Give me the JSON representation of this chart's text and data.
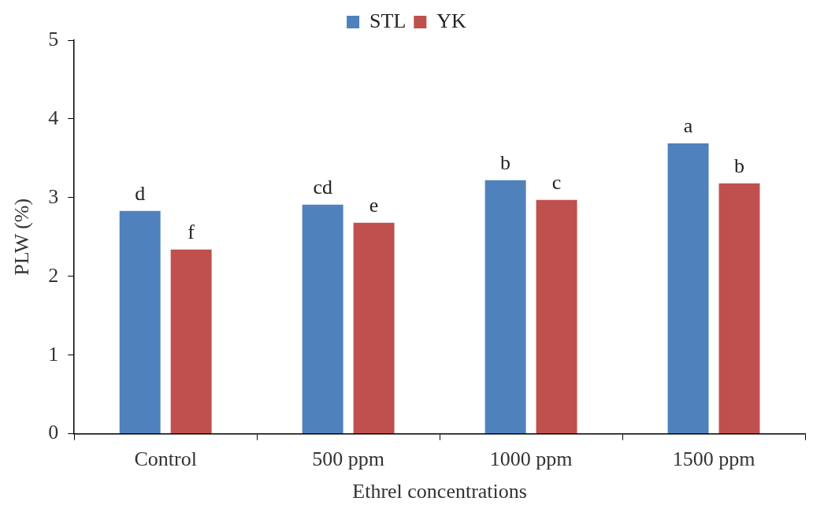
{
  "chart_data": {
    "type": "bar",
    "xlabel": "Ethrel concentrations",
    "ylabel": "PLW (%)",
    "categories": [
      "Control",
      "500 ppm",
      "1000 ppm",
      "1500 ppm"
    ],
    "series": [
      {
        "name": "STL",
        "color": "#4f81bd",
        "values": [
          2.83,
          2.91,
          3.22,
          3.69
        ],
        "value_labels": [
          "d",
          "cd",
          "b",
          "a"
        ]
      },
      {
        "name": "YK",
        "color": "#c0504d",
        "values": [
          2.34,
          2.68,
          2.97,
          3.18
        ],
        "value_labels": [
          "f",
          "e",
          "c",
          "b"
        ]
      }
    ],
    "ylim": [
      0,
      5
    ],
    "yticks": [
      0,
      1,
      2,
      3,
      4,
      5
    ],
    "grid": false,
    "legend": "top"
  }
}
